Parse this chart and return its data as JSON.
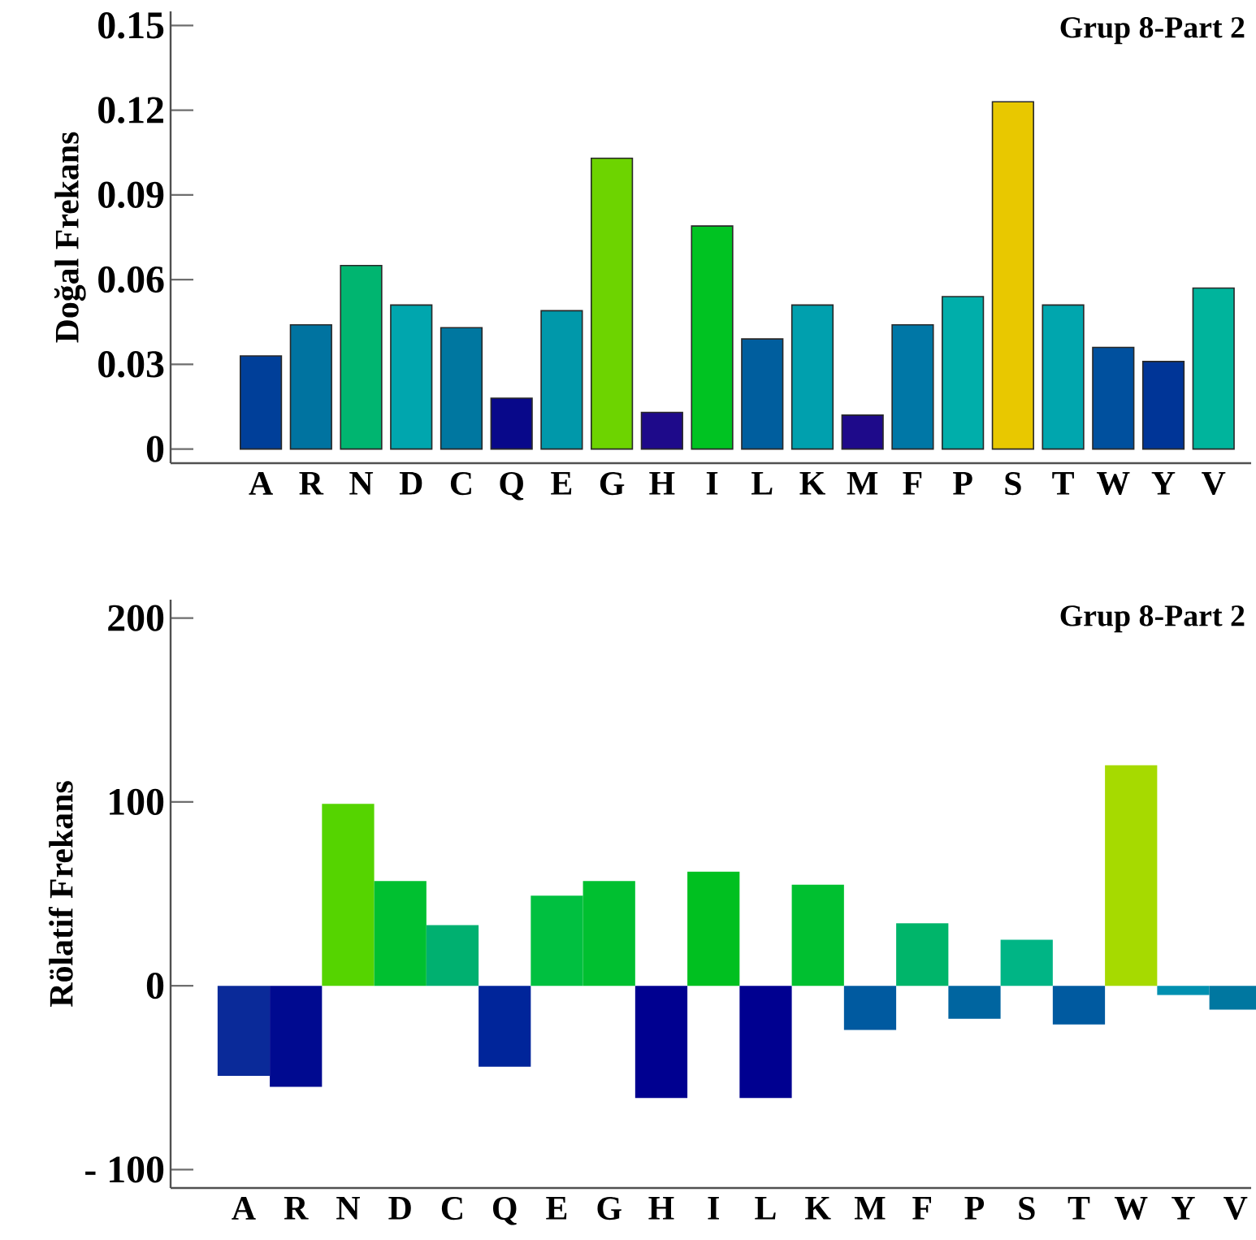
{
  "chart_data": [
    {
      "type": "bar",
      "title": "Grup 8-Part 2",
      "ylabel": "Doğal Frekans",
      "categories": [
        "A",
        "R",
        "N",
        "D",
        "C",
        "Q",
        "E",
        "G",
        "H",
        "I",
        "L",
        "K",
        "M",
        "F",
        "P",
        "S",
        "T",
        "W",
        "Y",
        "V"
      ],
      "values": [
        0.033,
        0.044,
        0.065,
        0.051,
        0.043,
        0.018,
        0.049,
        0.103,
        0.013,
        0.079,
        0.039,
        0.051,
        0.012,
        0.044,
        0.054,
        0.123,
        0.051,
        0.036,
        0.031,
        0.057
      ],
      "colors": [
        "#003f99",
        "#0073a0",
        "#00b570",
        "#00a6ae",
        "#0077a0",
        "#08088a",
        "#0098aa",
        "#6dd400",
        "#1e0a8a",
        "#00c322",
        "#005e9e",
        "#00a0ae",
        "#1e0a8a",
        "#0077a6",
        "#00aeaa",
        "#e8c800",
        "#00a6ae",
        "#00509e",
        "#003597",
        "#00b49c"
      ],
      "ylim": [
        -0.005,
        0.155
      ],
      "yticks": [
        0,
        0.03,
        0.06,
        0.09,
        0.12,
        0.15
      ]
    },
    {
      "type": "bar",
      "title": "Grup 8-Part 2",
      "ylabel": "Rölatif Frekans",
      "categories": [
        "A",
        "R",
        "N",
        "D",
        "C",
        "Q",
        "E",
        "G",
        "H",
        "I",
        "L",
        "K",
        "M",
        "F",
        "P",
        "S",
        "T",
        "W",
        "Y",
        "V"
      ],
      "values": [
        -49,
        -55,
        99,
        57,
        33,
        -44,
        49,
        57,
        -61,
        62,
        -61,
        55,
        -24,
        34,
        -18,
        25,
        -21,
        120,
        -5,
        -13
      ],
      "colors": [
        "#0a2a99",
        "#000a90",
        "#55d400",
        "#00c030",
        "#00b070",
        "#00259a",
        "#00c040",
        "#00c030",
        "#000090",
        "#00c020",
        "#000090",
        "#00c030",
        "#005aa0",
        "#00b56a",
        "#0065a0",
        "#00b585",
        "#005aa0",
        "#a6da00",
        "#0090b0",
        "#0077a0"
      ],
      "ylim": [
        -110,
        210
      ],
      "yticks": [
        {
          "value": -100,
          "label": "- 100"
        },
        0,
        100,
        200
      ]
    }
  ]
}
